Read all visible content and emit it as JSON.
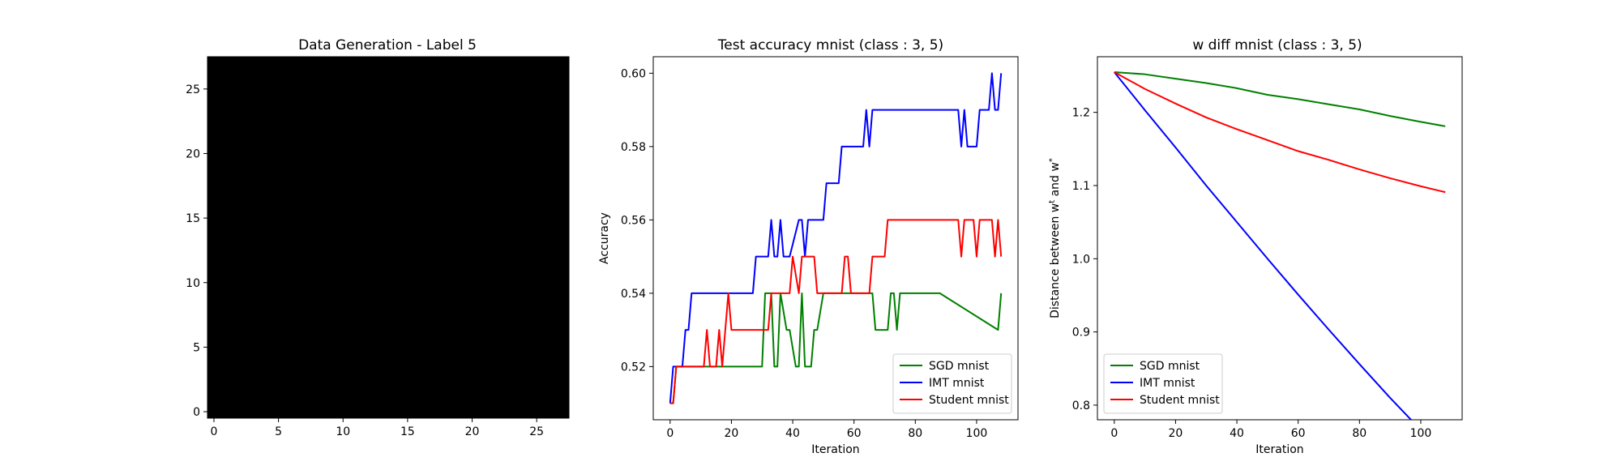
{
  "chart_data": [
    {
      "type": "heatmap",
      "title": "Data Generation - Label 5",
      "colormap": "gray",
      "xlim": [
        -0.5,
        27.5
      ],
      "ylim": [
        27.5,
        -0.5
      ],
      "xticks": [
        0,
        5,
        10,
        15,
        20,
        25
      ],
      "yticks": [
        0,
        5,
        10,
        15,
        20,
        25
      ],
      "xtick_labels": [
        "0",
        "5",
        "10",
        "15",
        "20",
        "25"
      ],
      "ytick_labels": [
        "0",
        "5",
        "10",
        "15",
        "20",
        "25"
      ],
      "grid": false,
      "nonzero_pixels": [
        [
          0,
          21,
          0.04
        ],
        [
          0,
          22,
          0.06
        ],
        [
          0,
          23,
          0.08
        ],
        [
          0,
          24,
          0.05
        ],
        [
          1,
          22,
          0.07
        ],
        [
          1,
          23,
          0.12
        ],
        [
          1,
          24,
          0.1
        ],
        [
          1,
          25,
          0.06
        ],
        [
          2,
          23,
          0.1
        ],
        [
          2,
          24,
          0.12
        ],
        [
          2,
          25,
          0.08
        ],
        [
          3,
          23,
          0.08
        ],
        [
          3,
          24,
          0.1
        ],
        [
          3,
          25,
          0.12
        ],
        [
          3,
          26,
          0.06
        ],
        [
          4,
          19,
          0.08
        ],
        [
          4,
          20,
          0.15
        ],
        [
          4,
          21,
          0.3
        ],
        [
          4,
          22,
          0.55
        ],
        [
          4,
          23,
          0.6
        ],
        [
          4,
          24,
          0.4
        ],
        [
          4,
          25,
          0.25
        ],
        [
          4,
          26,
          0.3
        ],
        [
          4,
          27,
          0.1
        ],
        [
          5,
          17,
          0.1
        ],
        [
          5,
          18,
          0.3
        ],
        [
          5,
          19,
          0.55
        ],
        [
          5,
          20,
          0.85
        ],
        [
          5,
          21,
          0.95
        ],
        [
          5,
          22,
          0.85
        ],
        [
          5,
          23,
          0.65
        ],
        [
          5,
          24,
          0.3
        ],
        [
          5,
          25,
          0.2
        ],
        [
          5,
          26,
          0.12
        ],
        [
          6,
          14,
          0.15
        ],
        [
          6,
          15,
          0.35
        ],
        [
          6,
          16,
          0.6
        ],
        [
          6,
          17,
          0.85
        ],
        [
          6,
          18,
          0.95
        ],
        [
          6,
          19,
          1.0
        ],
        [
          6,
          20,
          0.9
        ],
        [
          6,
          21,
          0.55
        ],
        [
          6,
          22,
          0.25
        ],
        [
          6,
          23,
          0.15
        ],
        [
          6,
          24,
          0.1
        ],
        [
          6,
          25,
          0.12
        ],
        [
          7,
          10,
          0.15
        ],
        [
          7,
          11,
          0.3
        ],
        [
          7,
          12,
          0.5
        ],
        [
          7,
          13,
          0.75
        ],
        [
          7,
          14,
          0.9
        ],
        [
          7,
          15,
          1.0
        ],
        [
          7,
          16,
          0.9
        ],
        [
          7,
          17,
          0.6
        ],
        [
          7,
          18,
          0.3
        ],
        [
          7,
          19,
          0.12
        ],
        [
          7,
          20,
          0.06
        ],
        [
          7,
          23,
          0.05
        ],
        [
          8,
          9,
          0.2
        ],
        [
          8,
          10,
          0.55
        ],
        [
          8,
          11,
          0.85
        ],
        [
          8,
          12,
          1.0
        ],
        [
          8,
          13,
          0.95
        ],
        [
          8,
          14,
          0.7
        ],
        [
          8,
          15,
          0.4
        ],
        [
          8,
          16,
          0.15
        ],
        [
          9,
          7,
          0.15
        ],
        [
          9,
          8,
          0.4
        ],
        [
          9,
          9,
          0.75
        ],
        [
          9,
          10,
          1.0
        ],
        [
          9,
          11,
          0.95
        ],
        [
          9,
          12,
          0.6
        ],
        [
          9,
          13,
          0.25
        ],
        [
          9,
          14,
          0.08
        ],
        [
          10,
          7,
          0.3
        ],
        [
          10,
          8,
          0.65
        ],
        [
          10,
          9,
          0.95
        ],
        [
          10,
          10,
          1.0
        ],
        [
          10,
          11,
          0.7
        ],
        [
          10,
          12,
          0.35
        ],
        [
          10,
          13,
          0.12
        ],
        [
          11,
          6,
          0.15
        ],
        [
          11,
          7,
          0.6
        ],
        [
          11,
          8,
          0.95
        ],
        [
          11,
          9,
          1.0
        ],
        [
          11,
          10,
          0.95
        ],
        [
          11,
          11,
          0.8
        ],
        [
          11,
          12,
          0.5
        ],
        [
          11,
          13,
          0.2
        ],
        [
          12,
          6,
          0.2
        ],
        [
          12,
          7,
          0.7
        ],
        [
          12,
          8,
          0.9
        ],
        [
          12,
          9,
          1.0
        ],
        [
          12,
          10,
          1.0
        ],
        [
          12,
          11,
          0.9
        ],
        [
          12,
          12,
          0.7
        ],
        [
          12,
          13,
          0.35
        ],
        [
          12,
          14,
          0.1
        ],
        [
          13,
          7,
          0.3
        ],
        [
          13,
          8,
          0.55
        ],
        [
          13,
          9,
          0.8
        ],
        [
          13,
          10,
          0.95
        ],
        [
          13,
          11,
          1.0
        ],
        [
          13,
          12,
          0.85
        ],
        [
          13,
          13,
          0.55
        ],
        [
          13,
          14,
          0.25
        ],
        [
          14,
          8,
          0.15
        ],
        [
          14,
          9,
          0.3
        ],
        [
          14,
          10,
          0.5
        ],
        [
          14,
          11,
          0.35
        ],
        [
          14,
          12,
          0.55
        ],
        [
          14,
          13,
          0.85
        ],
        [
          14,
          14,
          0.95
        ],
        [
          14,
          15,
          0.6
        ],
        [
          15,
          7,
          0.06
        ],
        [
          15,
          12,
          0.1
        ],
        [
          15,
          13,
          0.4
        ],
        [
          15,
          14,
          0.85
        ],
        [
          15,
          15,
          1.0
        ],
        [
          15,
          16,
          0.85
        ],
        [
          16,
          14,
          0.7
        ],
        [
          16,
          15,
          1.0
        ],
        [
          16,
          16,
          0.9
        ],
        [
          17,
          13,
          0.2
        ],
        [
          17,
          14,
          0.8
        ],
        [
          17,
          15,
          1.0
        ],
        [
          17,
          16,
          0.75
        ],
        [
          18,
          13,
          0.45
        ],
        [
          18,
          14,
          0.9
        ],
        [
          18,
          15,
          0.95
        ],
        [
          18,
          16,
          0.6
        ],
        [
          19,
          11,
          0.25
        ],
        [
          19,
          12,
          0.5
        ],
        [
          19,
          13,
          0.8
        ],
        [
          19,
          14,
          0.95
        ],
        [
          19,
          15,
          0.8
        ],
        [
          19,
          16,
          0.4
        ],
        [
          20,
          9,
          0.1
        ],
        [
          20,
          10,
          0.3
        ],
        [
          20,
          11,
          0.55
        ],
        [
          20,
          12,
          0.75
        ],
        [
          20,
          13,
          0.95
        ],
        [
          20,
          14,
          0.9
        ],
        [
          20,
          15,
          0.55
        ],
        [
          20,
          16,
          0.15
        ],
        [
          21,
          8,
          0.12
        ],
        [
          21,
          9,
          0.3
        ],
        [
          21,
          10,
          0.6
        ],
        [
          21,
          11,
          0.75
        ],
        [
          21,
          12,
          0.65
        ],
        [
          21,
          13,
          0.45
        ],
        [
          21,
          14,
          0.2
        ],
        [
          22,
          8,
          0.06
        ],
        [
          22,
          9,
          0.12
        ],
        [
          22,
          10,
          0.25
        ],
        [
          22,
          11,
          0.25
        ],
        [
          23,
          7,
          0.05
        ],
        [
          23,
          8,
          0.06
        ],
        [
          24,
          8,
          0.06
        ],
        [
          24,
          9,
          0.1
        ],
        [
          25,
          8,
          0.05
        ],
        [
          25,
          9,
          0.08
        ],
        [
          26,
          9,
          0.05
        ],
        [
          26,
          10,
          0.06
        ],
        [
          27,
          9,
          0.05
        ],
        [
          27,
          10,
          0.08
        ]
      ]
    },
    {
      "type": "line",
      "title": "Test accuracy mnist (class : 3, 5)",
      "xlabel": "Iteration",
      "ylabel": "Accuracy",
      "xlim": [
        -5.5,
        113.5
      ],
      "ylim": [
        0.5055,
        0.6045
      ],
      "xticks": [
        0,
        20,
        40,
        60,
        80,
        100
      ],
      "yticks": [
        0.52,
        0.54,
        0.56,
        0.58,
        0.6
      ],
      "xtick_labels": [
        "0",
        "20",
        "40",
        "60",
        "80",
        "100"
      ],
      "ytick_labels": [
        "0.52",
        "0.54",
        "0.56",
        "0.58",
        "0.60"
      ],
      "legend_position": "lower-right",
      "grid": false,
      "series": [
        {
          "name": "SGD mnist",
          "color": "#008000",
          "x": [
            0,
            1,
            2,
            30,
            31,
            33,
            34,
            35,
            36,
            38,
            39,
            41,
            42,
            43,
            44,
            46,
            47,
            48,
            50,
            51,
            52,
            66,
            67,
            71,
            72,
            73,
            74,
            75,
            88,
            107,
            108
          ],
          "y": [
            0.51,
            0.51,
            0.52,
            0.52,
            0.54,
            0.54,
            0.52,
            0.52,
            0.54,
            0.53,
            0.53,
            0.52,
            0.52,
            0.54,
            0.52,
            0.52,
            0.53,
            0.53,
            0.54,
            0.54,
            0.54,
            0.54,
            0.53,
            0.53,
            0.54,
            0.54,
            0.53,
            0.54,
            0.54,
            0.53,
            0.54
          ]
        },
        {
          "name": "IMT mnist",
          "color": "#0000ff",
          "x": [
            0,
            1,
            2,
            4,
            5,
            6,
            7,
            27,
            28,
            32,
            33,
            34,
            35,
            36,
            37,
            38,
            39,
            42,
            43,
            44,
            45,
            50,
            51,
            55,
            56,
            63,
            64,
            65,
            66,
            94,
            95,
            96,
            97,
            100,
            101,
            104,
            105,
            106,
            107,
            108
          ],
          "y": [
            0.51,
            0.52,
            0.52,
            0.52,
            0.53,
            0.53,
            0.54,
            0.54,
            0.55,
            0.55,
            0.56,
            0.55,
            0.55,
            0.56,
            0.55,
            0.55,
            0.55,
            0.56,
            0.56,
            0.55,
            0.56,
            0.56,
            0.57,
            0.57,
            0.58,
            0.58,
            0.59,
            0.58,
            0.59,
            0.59,
            0.58,
            0.59,
            0.58,
            0.58,
            0.59,
            0.59,
            0.6,
            0.59,
            0.59,
            0.6
          ]
        },
        {
          "name": "Student mnist",
          "color": "#ff0000",
          "x": [
            0,
            1,
            2,
            11,
            12,
            13,
            15,
            16,
            17,
            18,
            19,
            20,
            32,
            33,
            39,
            40,
            42,
            43,
            47,
            48,
            49,
            50,
            56,
            57,
            58,
            59,
            65,
            66,
            67,
            70,
            71,
            94,
            95,
            96,
            99,
            100,
            101,
            102,
            105,
            106,
            107,
            108
          ],
          "y": [
            0.51,
            0.51,
            0.52,
            0.52,
            0.53,
            0.52,
            0.52,
            0.53,
            0.52,
            0.53,
            0.54,
            0.53,
            0.53,
            0.54,
            0.54,
            0.55,
            0.54,
            0.55,
            0.55,
            0.54,
            0.54,
            0.54,
            0.54,
            0.55,
            0.55,
            0.54,
            0.54,
            0.55,
            0.55,
            0.55,
            0.56,
            0.56,
            0.55,
            0.56,
            0.56,
            0.55,
            0.56,
            0.56,
            0.56,
            0.55,
            0.56,
            0.55
          ]
        }
      ]
    },
    {
      "type": "line",
      "title": "w diff mnist (class : 3, 5)",
      "xlabel": "Iteration",
      "ylabel": "Distance between w",
      "ylabel_sup1": "t",
      "ylabel_mid": " and w",
      "ylabel_sup2": "*",
      "xlim": [
        -5.5,
        113.5
      ],
      "ylim": [
        0.78,
        1.276
      ],
      "xticks": [
        0,
        20,
        40,
        60,
        80,
        100
      ],
      "yticks": [
        0.8,
        0.9,
        1.0,
        1.1,
        1.2
      ],
      "xtick_labels": [
        "0",
        "20",
        "40",
        "60",
        "80",
        "100"
      ],
      "ytick_labels": [
        "0.8",
        "0.9",
        "1.0",
        "1.1",
        "1.2"
      ],
      "legend_position": "lower-left",
      "grid": false,
      "series": [
        {
          "name": "SGD mnist",
          "color": "#008000",
          "x": [
            0,
            10,
            20,
            30,
            40,
            50,
            60,
            70,
            80,
            90,
            100,
            108
          ],
          "y": [
            1.255,
            1.252,
            1.246,
            1.24,
            1.233,
            1.224,
            1.218,
            1.211,
            1.204,
            1.195,
            1.187,
            1.181
          ]
        },
        {
          "name": "IMT mnist",
          "color": "#0000ff",
          "x": [
            0,
            10,
            20,
            30,
            40,
            50,
            60,
            70,
            80,
            90,
            100,
            108
          ],
          "y": [
            1.255,
            1.203,
            1.152,
            1.1,
            1.05,
            1.0,
            0.951,
            0.903,
            0.856,
            0.81,
            0.766,
            0.73
          ]
        },
        {
          "name": "Student mnist",
          "color": "#ff0000",
          "x": [
            0,
            10,
            20,
            30,
            40,
            50,
            60,
            70,
            80,
            90,
            100,
            108
          ],
          "y": [
            1.255,
            1.232,
            1.212,
            1.193,
            1.177,
            1.162,
            1.147,
            1.135,
            1.122,
            1.11,
            1.099,
            1.091
          ]
        }
      ]
    }
  ]
}
